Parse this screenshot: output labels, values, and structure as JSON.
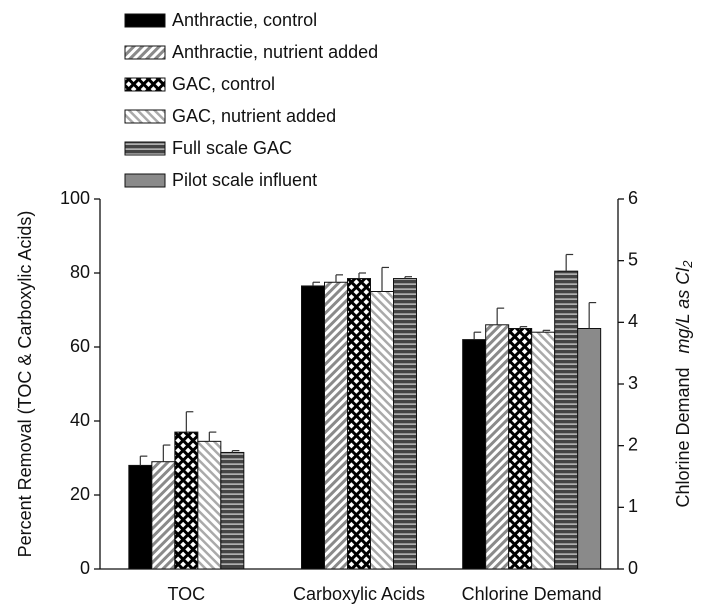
{
  "chart_data": {
    "type": "bar",
    "categories": [
      "TOC",
      "Carboxylic Acids",
      "Chlorine Demand"
    ],
    "series": [
      {
        "name": "Anthractie, control",
        "color": "#000000",
        "pattern": "solid",
        "values": [
          28,
          76.5,
          62
        ],
        "errors": [
          2.5,
          1,
          2
        ]
      },
      {
        "name": "Anthractie, nutrient added",
        "color": "#9a9a9a",
        "pattern": "diagonal",
        "values": [
          29,
          77.5,
          66
        ],
        "errors": [
          4.5,
          2,
          4.5
        ]
      },
      {
        "name": "GAC, control",
        "color": "#000000",
        "pattern": "crosshatch",
        "values": [
          37,
          78.5,
          65
        ],
        "errors": [
          5.5,
          1.5,
          0.5
        ]
      },
      {
        "name": "GAC, nutrient added",
        "color": "#b5b5b5",
        "pattern": "backdiagonal",
        "values": [
          34.5,
          75,
          64
        ],
        "errors": [
          2.5,
          6.5,
          0.5
        ]
      },
      {
        "name": "Full scale GAC",
        "color": "#444444",
        "pattern": "horizontal",
        "values": [
          31.5,
          78.5,
          80.5
        ],
        "errors": [
          0.5,
          0.5,
          4.5
        ]
      },
      {
        "name": "Pilot scale influent",
        "color": "#8a8a8a",
        "pattern": "solid",
        "values": [
          null,
          null,
          65
        ],
        "errors": [
          null,
          null,
          7
        ]
      }
    ],
    "ylabel": "Percent Removal (TOC & Carboxylic Acids)",
    "ylim": [
      0,
      100
    ],
    "yticks": [
      0,
      20,
      40,
      60,
      80,
      100
    ],
    "y2label": "Chlorine Demand",
    "y2unit": "mg/L as Cl",
    "y2unit_sub": "2",
    "y2lim": [
      0,
      6
    ],
    "y2ticks": [
      0,
      1,
      2,
      3,
      4,
      5,
      6
    ],
    "legend": "top-left"
  }
}
